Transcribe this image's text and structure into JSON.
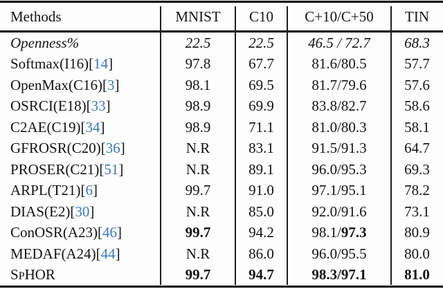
{
  "colors": {
    "citation_blue": "#3677c5",
    "text": "#141414",
    "rule": "#000000",
    "background": "#fdfdfd"
  },
  "table": {
    "header": [
      {
        "name": "col-methods",
        "label": "Methods"
      },
      {
        "name": "col-mnist",
        "label": "MNIST"
      },
      {
        "name": "col-c10",
        "label": "C10"
      },
      {
        "name": "col-cplus",
        "label": "C+10/C+50"
      },
      {
        "name": "col-tin",
        "label": "TIN"
      }
    ],
    "rows": [
      {
        "name": "row-openness",
        "italic": true,
        "method": [
          {
            "text": "Openness%"
          }
        ],
        "cells": [
          "22.5",
          "22.5",
          "46.5 / 72.7",
          "68.3"
        ]
      },
      {
        "name": "row-softmax",
        "method": [
          {
            "text": "Softmax(I16)["
          },
          {
            "text": "14",
            "cite": true
          },
          {
            "text": "]"
          }
        ],
        "cells": [
          "97.8",
          "67.7",
          "81.6/80.5",
          "57.7"
        ]
      },
      {
        "name": "row-openmax",
        "method": [
          {
            "text": "OpenMax(C16)["
          },
          {
            "text": "3",
            "cite": true
          },
          {
            "text": "]"
          }
        ],
        "cells": [
          "98.1",
          "69.5",
          "81.7/79.6",
          "57.6"
        ]
      },
      {
        "name": "row-osrci",
        "method": [
          {
            "text": "OSRCI(E18)["
          },
          {
            "text": "33",
            "cite": true
          },
          {
            "text": "]"
          }
        ],
        "cells": [
          "98.9",
          "69.9",
          "83.8/82.7",
          "58.6"
        ]
      },
      {
        "name": "row-c2ae",
        "method": [
          {
            "text": "C2AE(C19)["
          },
          {
            "text": "34",
            "cite": true
          },
          {
            "text": "]"
          }
        ],
        "cells": [
          "98.9",
          "71.1",
          "81.0/80.3",
          "58.1"
        ]
      },
      {
        "name": "row-gfrosr",
        "method": [
          {
            "text": "GFROSR(C20)["
          },
          {
            "text": "36",
            "cite": true
          },
          {
            "text": "]"
          }
        ],
        "cells": [
          "N.R",
          "83.1",
          "91.5/91.3",
          "64.7"
        ]
      },
      {
        "name": "row-proser",
        "method": [
          {
            "text": "PROSER(C21)["
          },
          {
            "text": "51",
            "cite": true
          },
          {
            "text": "]"
          }
        ],
        "cells": [
          "N.R",
          "89.1",
          "96.0/95.3",
          "69.3"
        ]
      },
      {
        "name": "row-arpl",
        "method": [
          {
            "text": "ARPL(T21)["
          },
          {
            "text": "6",
            "cite": true
          },
          {
            "text": "]"
          }
        ],
        "cells": [
          "99.7",
          "91.0",
          "97.1/95.1",
          "78.2"
        ]
      },
      {
        "name": "row-dias",
        "method": [
          {
            "text": "DIAS(E2)["
          },
          {
            "text": "30",
            "cite": true
          },
          {
            "text": "]"
          }
        ],
        "cells": [
          "N.R",
          "85.0",
          "92.0/91.6",
          "73.1"
        ]
      },
      {
        "name": "row-conosr",
        "method": [
          {
            "text": "ConOSR(A23)["
          },
          {
            "text": "46",
            "cite": true
          },
          {
            "text": "]"
          }
        ],
        "cells": [
          [
            {
              "text": "99.7",
              "bold": true
            }
          ],
          "94.2",
          [
            {
              "text": "98.1/"
            },
            {
              "text": "97.3",
              "bold": true
            }
          ],
          "80.9"
        ]
      },
      {
        "name": "row-medaf",
        "method": [
          {
            "text": "MEDAF(A24)["
          },
          {
            "text": "44",
            "cite": true
          },
          {
            "text": "]"
          }
        ],
        "cells": [
          "N.R",
          "86.0",
          "96.0/95.5",
          "80.0"
        ]
      },
      {
        "name": "row-sphor",
        "method": [
          {
            "text": "S"
          },
          {
            "text": "P",
            "small": true
          },
          {
            "text": "HOR"
          }
        ],
        "cells": [
          [
            {
              "text": "99.7",
              "bold": true
            }
          ],
          [
            {
              "text": "94.7",
              "bold": true
            }
          ],
          [
            {
              "text": "98.3/97.1",
              "bold": true
            }
          ],
          [
            {
              "text": "81.0",
              "bold": true
            }
          ]
        ]
      }
    ]
  }
}
